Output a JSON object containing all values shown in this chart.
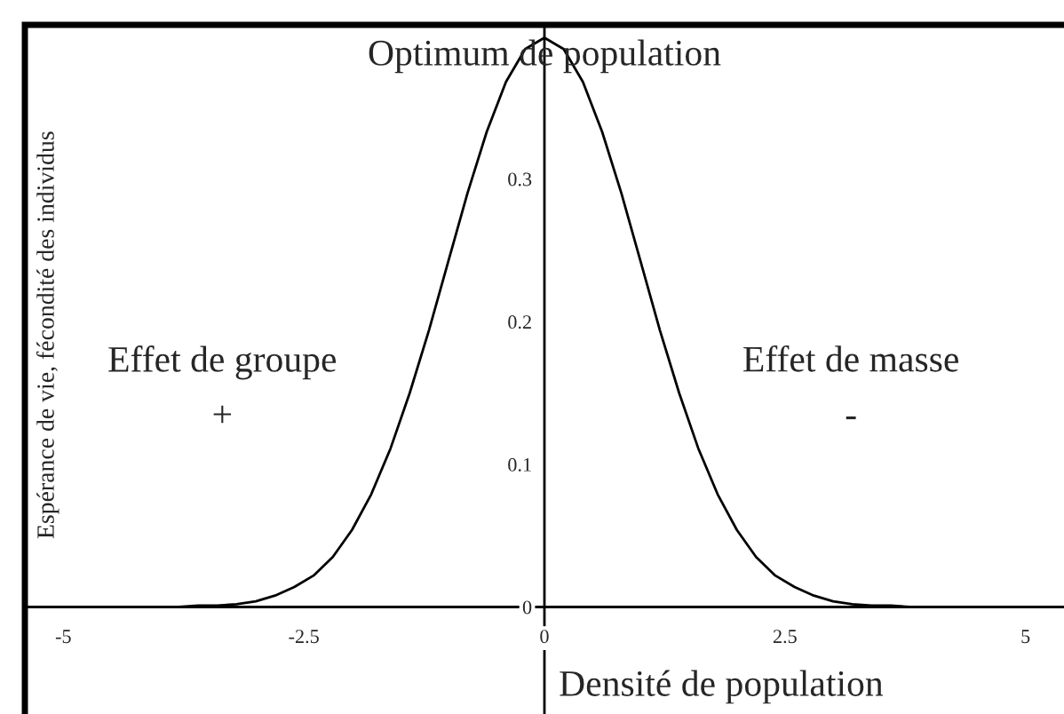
{
  "chart_data": {
    "type": "line",
    "title": "Optimum de population",
    "xlabel": "Densité de population",
    "ylabel": "Espérance de vie, fécondité des individus",
    "annotations": [
      "Effet de groupe",
      "+",
      "Effet de masse",
      "-"
    ],
    "x": [
      -3.8,
      -3.6,
      -3.4,
      -3.2,
      -3.0,
      -2.8,
      -2.6,
      -2.4,
      -2.2,
      -2.0,
      -1.8,
      -1.6,
      -1.4,
      -1.2,
      -1.0,
      -0.8,
      -0.6,
      -0.4,
      -0.2,
      0,
      0.2,
      0.4,
      0.6,
      0.8,
      1.0,
      1.2,
      1.4,
      1.6,
      1.8,
      2.0,
      2.2,
      2.4,
      2.6,
      2.8,
      3.0,
      3.2,
      3.4,
      3.6,
      3.8
    ],
    "series": [
      {
        "color": "#000000",
        "values": [
          0.0,
          0.001,
          0.001,
          0.002,
          0.004,
          0.008,
          0.014,
          0.022,
          0.035,
          0.054,
          0.079,
          0.111,
          0.15,
          0.194,
          0.242,
          0.29,
          0.333,
          0.368,
          0.391,
          0.399,
          0.391,
          0.368,
          0.333,
          0.29,
          0.242,
          0.194,
          0.15,
          0.111,
          0.079,
          0.054,
          0.035,
          0.022,
          0.014,
          0.008,
          0.004,
          0.002,
          0.001,
          0.001,
          0.0
        ]
      }
    ],
    "xlim": [
      -5.4,
      5.4
    ],
    "ylim": [
      -0.075,
      0.408
    ],
    "xticks": [
      -5,
      -2.5,
      0,
      2.5,
      5
    ],
    "yticks": [
      0,
      0.1,
      0.2,
      0.3
    ],
    "grid": false,
    "legend": false,
    "marker": "none",
    "line_style": "solid"
  }
}
